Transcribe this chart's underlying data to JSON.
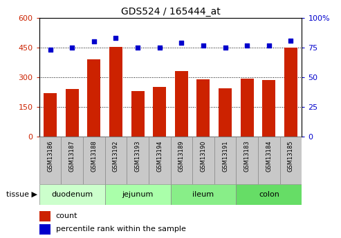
{
  "title": "GDS524 / 165444_at",
  "samples": [
    "GSM13186",
    "GSM13187",
    "GSM13188",
    "GSM13192",
    "GSM13193",
    "GSM13194",
    "GSM13189",
    "GSM13190",
    "GSM13191",
    "GSM13183",
    "GSM13184",
    "GSM13185"
  ],
  "counts": [
    220,
    240,
    390,
    455,
    230,
    250,
    330,
    290,
    245,
    295,
    285,
    450
  ],
  "percentiles": [
    73,
    75,
    80,
    83,
    75,
    75,
    79,
    77,
    75,
    77,
    77,
    81
  ],
  "bar_color": "#CC2200",
  "dot_color": "#0000CC",
  "left_yticks": [
    0,
    150,
    300,
    450,
    600
  ],
  "right_yticks": [
    0,
    25,
    50,
    75,
    100
  ],
  "left_ylim": [
    0,
    600
  ],
  "right_ylim": [
    0,
    100
  ],
  "grid_values": [
    150,
    300,
    450
  ],
  "tissue_groups": [
    {
      "label": "duodenum",
      "start": 0,
      "end": 3,
      "color": "#CCFFCC"
    },
    {
      "label": "jejunum",
      "start": 3,
      "end": 6,
      "color": "#AAFFAA"
    },
    {
      "label": "ileum",
      "start": 6,
      "end": 9,
      "color": "#88EE88"
    },
    {
      "label": "colon",
      "start": 9,
      "end": 12,
      "color": "#66DD66"
    }
  ],
  "legend_count_label": "count",
  "legend_pct_label": "percentile rank within the sample",
  "tissue_label": "tissue",
  "left_label_color": "#CC2200",
  "right_label_color": "#0000CC",
  "tick_bg_color": "#C8C8C8",
  "tick_border_color": "#888888"
}
